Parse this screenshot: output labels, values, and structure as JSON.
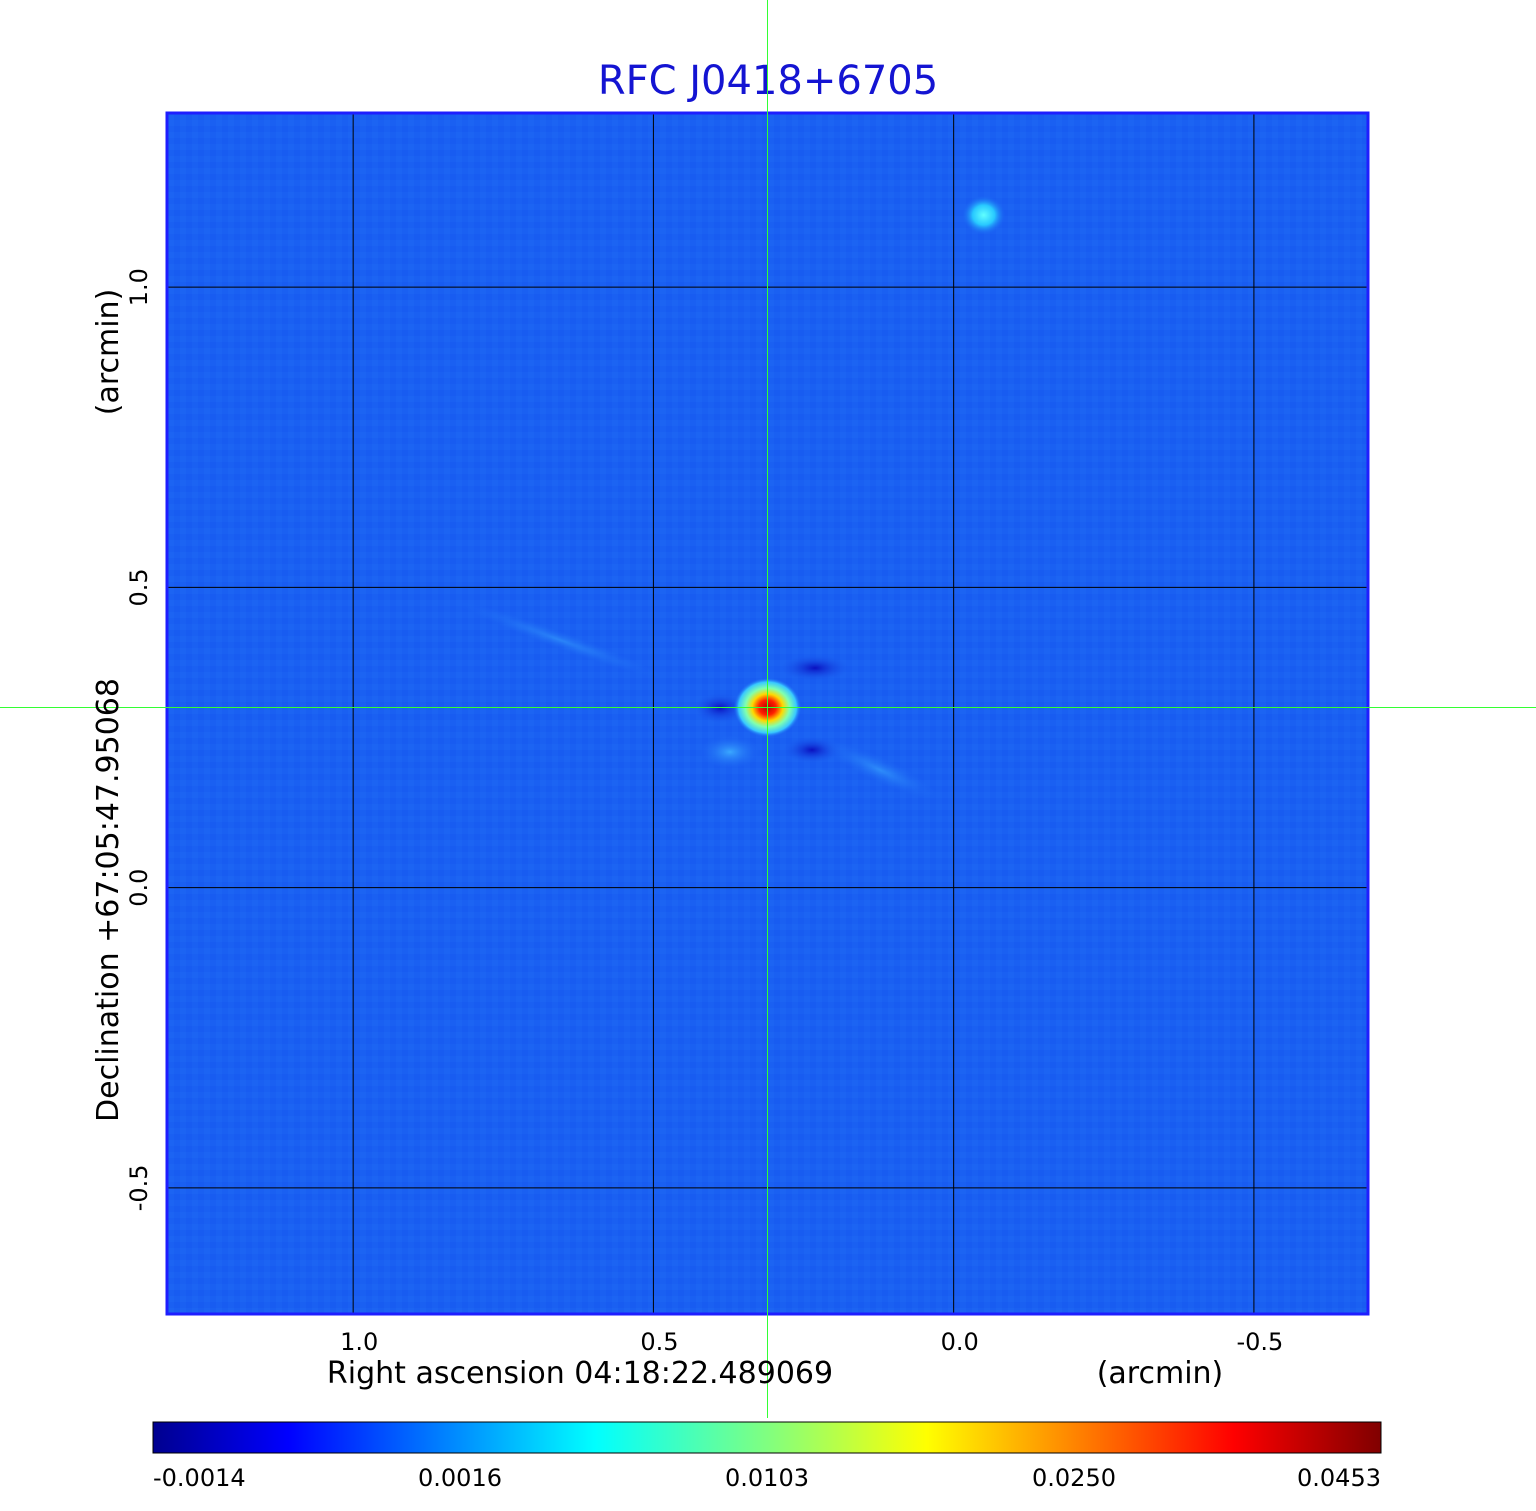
{
  "chart_data": {
    "type": "heatmap",
    "title": "RFC J0418+6705",
    "xlabel": "Right ascension  04:18:22.489069",
    "xlabel_unit": "(arcmin)",
    "ylabel": "Declination  +67:05:47.95068",
    "ylabel_unit": "(arcmin)",
    "xlim": [
      1.31,
      -0.69
    ],
    "ylim": [
      -0.71,
      1.29
    ],
    "x_ticks": [
      1.0,
      0.5,
      0.0,
      -0.5
    ],
    "x_tick_labels": [
      "1.0",
      "0.5",
      "0.0",
      "-0.5"
    ],
    "y_ticks": [
      1.0,
      0.5,
      0.0,
      -0.5
    ],
    "y_tick_labels": [
      "1.0",
      "0.5",
      "0.0",
      "-0.5"
    ],
    "grid": true,
    "crosshair": {
      "x": 0.31,
      "y": 0.3
    },
    "sources": [
      {
        "x": 0.31,
        "y": 0.3,
        "peak": 0.0453
      },
      {
        "x": -0.05,
        "y": 1.12,
        "peak": 0.0075
      }
    ],
    "colorbar": {
      "colormap": "jet",
      "tick_labels": [
        "-0.0014",
        "0.0016",
        "0.0103",
        "0.0250",
        "0.0453"
      ],
      "values": [
        -0.0014,
        0.0016,
        0.0103,
        0.025,
        0.0453
      ]
    }
  },
  "colors": {
    "title": "#1414d2",
    "frame": "#1e1eff",
    "background_map": "#1a60f2",
    "grid": "#000000",
    "crosshair": "#33ff33"
  }
}
